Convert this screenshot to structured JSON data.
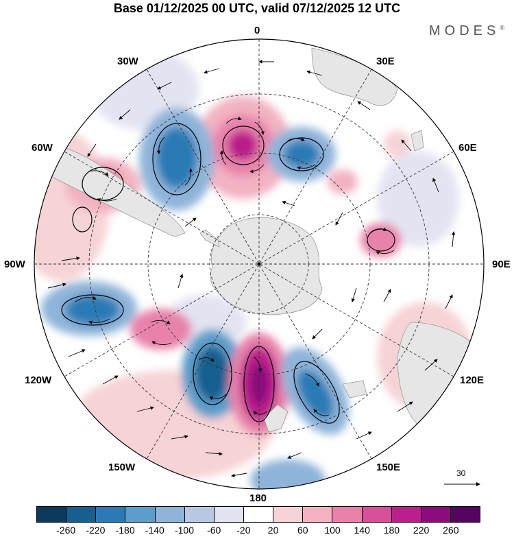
{
  "header": {
    "title": "Base 01/12/2025 00 UTC, valid 07/12/2025 12 UTC",
    "brand": "MODES",
    "brand_mark": "®"
  },
  "map": {
    "projection": "South Polar Stereographic",
    "longitude_labels": {
      "lon_0": "0",
      "lon_30e": "30E",
      "lon_60e": "60E",
      "lon_90e": "90E",
      "lon_120e": "120E",
      "lon_150e": "150E",
      "lon_180": "180",
      "lon_150w": "150W",
      "lon_120w": "120W",
      "lon_90w": "90W",
      "lon_60w": "60W",
      "lon_30w": "30W"
    },
    "colors": {
      "land": "#e6e6e6",
      "coast": "#9a9a9a",
      "grid": "#333333"
    }
  },
  "reference_vector": {
    "label": "30"
  },
  "colorbar": {
    "ticks": [
      "-260",
      "-220",
      "-180",
      "-140",
      "-100",
      "-60",
      "-20",
      "20",
      "60",
      "100",
      "140",
      "180",
      "220",
      "260"
    ],
    "colors": [
      "#0c3a5c",
      "#175f8f",
      "#2b7ab5",
      "#5d9dcb",
      "#8fb4d9",
      "#b8c8e3",
      "#e2e4f1",
      "#ffffff",
      "#f6d3d6",
      "#f2b2c2",
      "#e882ab",
      "#d84f9a",
      "#bb1f8a",
      "#8c0c7e",
      "#52045e"
    ]
  }
}
